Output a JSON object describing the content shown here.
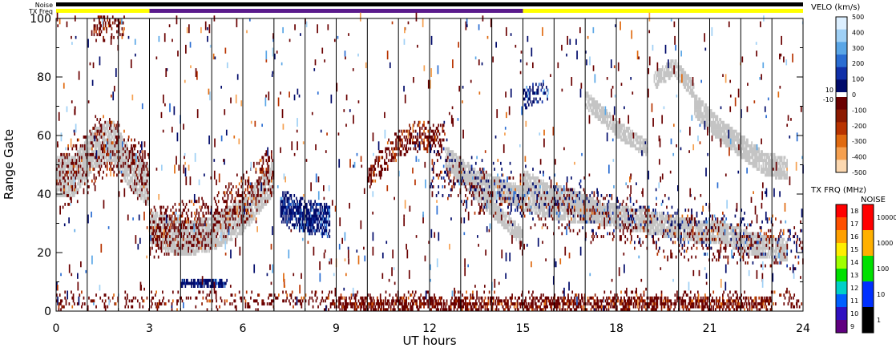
{
  "header": {
    "noise_label": "Noise",
    "txfreq_label": "TX Freq",
    "tx_segments": [
      {
        "start": 0,
        "end": 3,
        "color": "#ffff00"
      },
      {
        "start": 3,
        "end": 15,
        "color": "#5a1a8c"
      },
      {
        "start": 15,
        "end": 24,
        "color": "#ffff00"
      }
    ]
  },
  "chart_data": {
    "type": "heatmap",
    "xlabel": "UT hours",
    "ylabel": "Range Gate",
    "xlim": [
      0,
      24
    ],
    "ylim": [
      0,
      100
    ],
    "x_ticks": [
      "0",
      "3",
      "6",
      "9",
      "12",
      "15",
      "18",
      "21",
      "24"
    ],
    "y_ticks": [
      "0",
      "20",
      "40",
      "60",
      "80",
      "100"
    ],
    "scan_boundaries_ut": [
      1,
      2,
      3,
      4,
      5,
      6,
      7,
      8,
      9,
      10,
      11,
      12,
      13,
      14,
      15,
      16,
      17,
      18,
      19,
      20,
      21,
      22,
      23
    ],
    "ground_scatter_color": "#c4c4c4",
    "regions": [
      {
        "kind": "ground",
        "x0": 0,
        "x1": 3,
        "center": [
          45,
          46,
          55,
          58,
          48,
          42
        ],
        "halfwidth": 6
      },
      {
        "kind": "ground",
        "x0": 3,
        "x1": 7,
        "center": [
          28,
          24,
          26,
          32,
          45
        ],
        "halfwidth": 5
      },
      {
        "kind": "ground",
        "x0": 12.5,
        "x1": 23.5,
        "center": [
          52,
          44,
          40,
          36,
          34,
          33,
          31,
          29,
          27,
          26,
          22,
          20
        ],
        "halfwidth": 3
      },
      {
        "kind": "ground",
        "x0": 12.8,
        "x1": 15,
        "center": [
          48,
          40,
          32,
          25
        ],
        "halfwidth": 2
      },
      {
        "kind": "ground",
        "x0": 15,
        "x1": 17.5,
        "center": [
          45,
          40,
          38,
          34
        ],
        "halfwidth": 2
      },
      {
        "kind": "ground",
        "x0": 17,
        "x1": 19,
        "center": [
          72,
          62,
          55
        ],
        "halfwidth": 2
      },
      {
        "kind": "ground",
        "x0": 19.2,
        "x1": 20.5,
        "center": [
          78,
          83,
          75
        ],
        "halfwidth": 2
      },
      {
        "kind": "ground",
        "x0": 20.5,
        "x1": 23.5,
        "center": [
          70,
          62,
          56,
          50,
          48
        ],
        "halfwidth": 3
      },
      {
        "kind": "neg",
        "x0": 0,
        "x1": 3,
        "center": [
          45,
          48,
          56,
          52,
          45
        ],
        "halfwidth": 10,
        "density": 0.25
      },
      {
        "kind": "neg",
        "x0": 3,
        "x1": 7,
        "center": [
          26,
          28,
          30,
          38,
          48
        ],
        "halfwidth": 8,
        "density": 0.35
      },
      {
        "kind": "neg",
        "x0": 10,
        "x1": 12.5,
        "center": [
          45,
          55,
          60,
          58
        ],
        "halfwidth": 4,
        "density": 0.5
      },
      {
        "kind": "neg",
        "x0": 0,
        "x1": 24,
        "center": [
          3,
          3
        ],
        "halfwidth": 3,
        "density": 0.18
      },
      {
        "kind": "neg",
        "x0": 9,
        "x1": 23,
        "center": [
          2,
          2
        ],
        "halfwidth": 2,
        "density": 0.6
      },
      {
        "kind": "neg",
        "x0": 1.2,
        "x1": 2.2,
        "center": [
          96,
          98
        ],
        "halfwidth": 4,
        "density": 0.4
      },
      {
        "kind": "neg",
        "x0": 12,
        "x1": 24,
        "center": [
          48,
          40,
          36,
          32,
          28,
          25,
          24,
          22
        ],
        "halfwidth": 8,
        "density": 0.12
      },
      {
        "kind": "pos",
        "x0": 7.2,
        "x1": 8.8,
        "center": [
          35,
          32,
          30
        ],
        "halfwidth": 5,
        "density": 0.9
      },
      {
        "kind": "pos",
        "x0": 4,
        "x1": 5.5,
        "center": [
          9,
          9
        ],
        "halfwidth": 1,
        "density": 0.9
      },
      {
        "kind": "pos",
        "x0": 12,
        "x1": 24,
        "center": [
          48,
          42,
          36,
          30,
          26,
          22
        ],
        "halfwidth": 8,
        "density": 0.08
      },
      {
        "kind": "pos",
        "x0": 15,
        "x1": 15.8,
        "center": [
          72,
          75
        ],
        "halfwidth": 3,
        "density": 0.5
      }
    ],
    "velocity_colorbar": {
      "title": "VELO (km/s)",
      "positive_labels": [
        "500",
        "400",
        "300",
        "200",
        "100",
        "0"
      ],
      "negative_labels": [
        "-100",
        "-200",
        "-300",
        "-400",
        "-500"
      ],
      "gap_labels": [
        "10",
        "-10"
      ],
      "positive_colors": [
        "#dcefff",
        "#9fd0f5",
        "#5aa6e6",
        "#2a6dd2",
        "#1030a8",
        "#000a6a"
      ],
      "negative_colors": [
        "#6a0000",
        "#8c1a00",
        "#b83300",
        "#e06a10",
        "#f5a050",
        "#fcd8b0"
      ]
    },
    "txfreq_colorbar": {
      "title": "TX FRQ (MHz)",
      "labels": [
        "18",
        "17",
        "16",
        "15",
        "14",
        "13",
        "12",
        "11",
        "10",
        "9"
      ],
      "colors": [
        "#ff0000",
        "#ff5000",
        "#ffa000",
        "#ffee00",
        "#a0ff00",
        "#00e000",
        "#00d0c8",
        "#0060ff",
        "#3010c0",
        "#600080"
      ]
    },
    "noise_colorbar": {
      "title": "NOISE",
      "labels": [
        "10000",
        "1000",
        "100",
        "10",
        "1"
      ],
      "colors": [
        "#ff0000",
        "#ffb000",
        "#00e000",
        "#0030ff",
        "#000000"
      ]
    }
  }
}
